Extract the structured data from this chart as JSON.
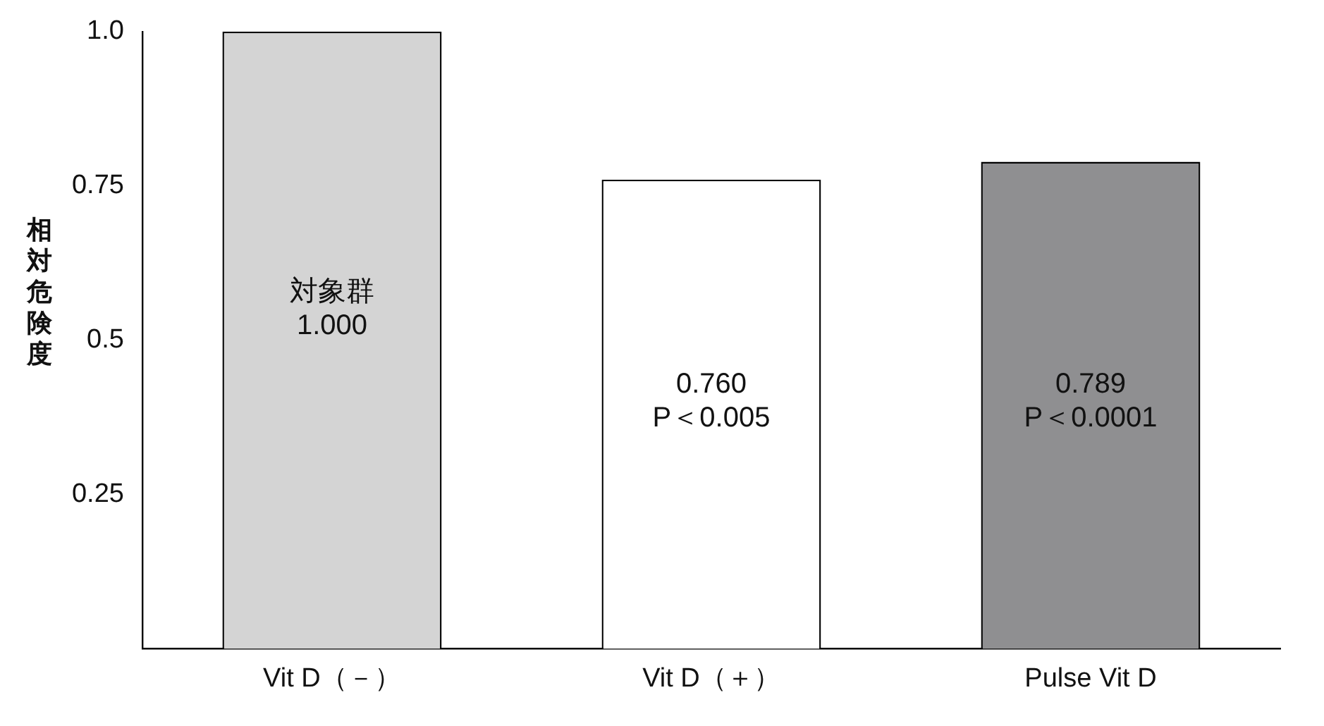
{
  "chart_data": {
    "type": "bar",
    "ylabel": "相対危険度",
    "categories": [
      "Vit D（－）",
      "Vit D（＋）",
      "Pulse Vit D"
    ],
    "values": [
      1.0,
      0.76,
      0.789
    ],
    "colors": [
      "#d4d4d4",
      "#ffffff",
      "#8f8f91"
    ],
    "value_labels": [
      "1.000",
      "0.760",
      "0.789"
    ],
    "annotations": [
      "対象群",
      "P＜0.005",
      "P＜0.0001"
    ],
    "ylim": [
      0,
      1.0
    ],
    "yticks": [
      {
        "value": 0.25,
        "label": "0.25"
      },
      {
        "value": 0.5,
        "label": "0.5"
      },
      {
        "value": 0.75,
        "label": "0.75"
      },
      {
        "value": 1.0,
        "label": "1.0"
      }
    ],
    "grid": false,
    "legend": false
  }
}
